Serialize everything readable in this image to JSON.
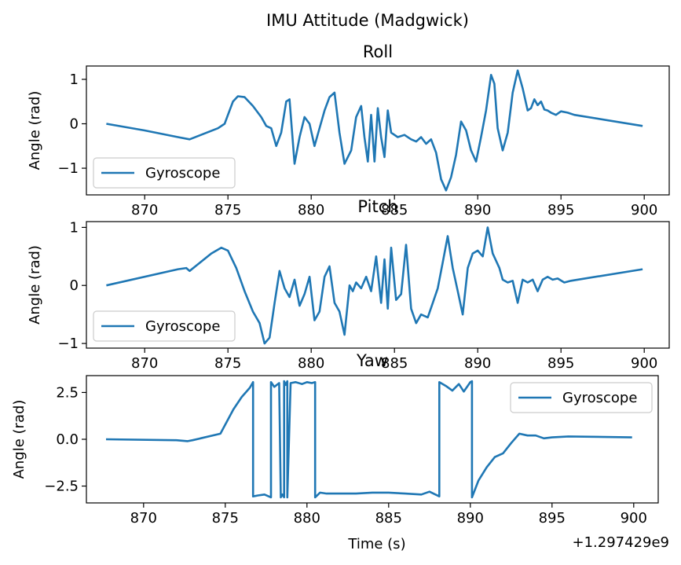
{
  "suptitle": "IMU Attitude (Madgwick)",
  "xlabel": "Time (s)",
  "x_offset_label": "+1.297429e9",
  "chart_data": [
    {
      "type": "line",
      "title": "Roll",
      "ylabel": "Angle (rad)",
      "xlim": [
        866.5,
        901.5
      ],
      "ylim": [
        -1.6,
        1.3
      ],
      "xticks": [
        870,
        875,
        880,
        885,
        890,
        895,
        900
      ],
      "yticks": [
        -1,
        0,
        1
      ],
      "ytick_labels": [
        "−1",
        "0",
        "1"
      ],
      "legend": "lower-left",
      "series": [
        {
          "name": "Gyroscope",
          "color": "#1f77b4",
          "x": [
            867.7,
            870.0,
            872.0,
            872.7,
            874.4,
            874.8,
            875.0,
            875.3,
            875.6,
            876.0,
            876.5,
            877.0,
            877.3,
            877.6,
            877.9,
            878.2,
            878.5,
            878.7,
            879.0,
            879.3,
            879.6,
            879.9,
            880.2,
            880.5,
            880.8,
            881.1,
            881.4,
            881.7,
            882.0,
            882.4,
            882.7,
            883.0,
            883.2,
            883.4,
            883.6,
            883.8,
            884.0,
            884.2,
            884.4,
            884.6,
            884.8,
            885.2,
            885.6,
            886.0,
            886.3,
            886.6,
            886.9,
            887.2,
            887.5,
            887.8,
            888.1,
            888.4,
            888.7,
            889.0,
            889.3,
            889.6,
            889.9,
            890.2,
            890.5,
            890.8,
            891.0,
            891.2,
            891.5,
            891.8,
            892.1,
            892.4,
            892.7,
            893.0,
            893.2,
            893.4,
            893.6,
            893.8,
            894.0,
            894.2,
            894.4,
            894.7,
            895.0,
            895.4,
            895.8,
            899.9
          ],
          "y": [
            0.0,
            -0.15,
            -0.3,
            -0.35,
            -0.1,
            0.0,
            0.2,
            0.5,
            0.62,
            0.6,
            0.4,
            0.15,
            -0.05,
            -0.1,
            -0.5,
            -0.2,
            0.5,
            0.55,
            -0.9,
            -0.3,
            0.15,
            0.0,
            -0.5,
            -0.1,
            0.3,
            0.6,
            0.7,
            -0.2,
            -0.9,
            -0.6,
            0.15,
            0.4,
            -0.3,
            -0.85,
            0.2,
            -0.85,
            0.35,
            -0.3,
            -0.75,
            0.3,
            -0.2,
            -0.3,
            -0.25,
            -0.35,
            -0.4,
            -0.3,
            -0.45,
            -0.35,
            -0.65,
            -1.25,
            -1.5,
            -1.2,
            -0.7,
            0.05,
            -0.15,
            -0.6,
            -0.85,
            -0.3,
            0.3,
            1.1,
            0.9,
            -0.1,
            -0.6,
            -0.2,
            0.7,
            1.2,
            0.8,
            0.3,
            0.35,
            0.55,
            0.42,
            0.5,
            0.32,
            0.3,
            0.25,
            0.2,
            0.28,
            0.25,
            0.2,
            -0.05
          ]
        }
      ]
    },
    {
      "type": "line",
      "title": "Pitch",
      "ylabel": "Angle (rad)",
      "xlim": [
        866.5,
        901.5
      ],
      "ylim": [
        -1.08,
        1.1
      ],
      "xticks": [
        870,
        875,
        880,
        885,
        890,
        895,
        900
      ],
      "yticks": [
        -1,
        0,
        1
      ],
      "ytick_labels": [
        "−1",
        "0",
        "1"
      ],
      "legend": "lower-left",
      "series": [
        {
          "name": "Gyroscope",
          "color": "#1f77b4",
          "x": [
            867.7,
            872.0,
            872.5,
            872.7,
            874.0,
            874.6,
            875.0,
            875.5,
            876.0,
            876.5,
            876.9,
            877.2,
            877.5,
            877.8,
            878.1,
            878.4,
            878.7,
            879.0,
            879.3,
            879.6,
            879.9,
            880.2,
            880.5,
            880.8,
            881.1,
            881.4,
            881.7,
            882.0,
            882.3,
            882.5,
            882.7,
            883.0,
            883.3,
            883.6,
            883.9,
            884.2,
            884.4,
            884.6,
            884.8,
            885.1,
            885.4,
            885.7,
            886.0,
            886.3,
            886.6,
            887.0,
            887.3,
            887.6,
            887.9,
            888.2,
            888.5,
            888.8,
            889.1,
            889.4,
            889.7,
            890.0,
            890.3,
            890.6,
            890.9,
            891.3,
            891.5,
            891.8,
            892.1,
            892.4,
            892.7,
            893.0,
            893.3,
            893.6,
            893.9,
            894.2,
            894.5,
            894.8,
            895.2,
            895.6,
            899.9
          ],
          "y": [
            0.0,
            0.28,
            0.3,
            0.25,
            0.55,
            0.65,
            0.6,
            0.3,
            -0.1,
            -0.45,
            -0.65,
            -1.0,
            -0.9,
            -0.3,
            0.25,
            -0.05,
            -0.2,
            0.1,
            -0.35,
            -0.15,
            0.15,
            -0.6,
            -0.45,
            0.15,
            0.33,
            -0.3,
            -0.45,
            -0.85,
            0.0,
            -0.1,
            0.05,
            -0.05,
            0.15,
            -0.1,
            0.5,
            -0.3,
            0.45,
            -0.4,
            0.65,
            -0.25,
            -0.15,
            0.7,
            -0.4,
            -0.65,
            -0.5,
            -0.55,
            -0.3,
            -0.05,
            0.4,
            0.85,
            0.3,
            -0.1,
            -0.5,
            0.3,
            0.55,
            0.6,
            0.5,
            1.0,
            0.55,
            0.3,
            0.1,
            0.05,
            0.08,
            -0.3,
            0.1,
            0.05,
            0.1,
            -0.1,
            0.1,
            0.15,
            0.1,
            0.12,
            0.05,
            0.08,
            0.28
          ]
        }
      ]
    },
    {
      "type": "line",
      "title": "Yaw",
      "ylabel": "Angle (rad)",
      "xlim": [
        866.5,
        901.5
      ],
      "ylim": [
        -3.4,
        3.4
      ],
      "xticks": [
        870,
        875,
        880,
        885,
        890,
        895,
        900
      ],
      "yticks": [
        -2.5,
        0.0,
        2.5
      ],
      "ytick_labels": [
        "−2.5",
        "0.0",
        "2.5"
      ],
      "legend": "upper-right",
      "series": [
        {
          "name": "Gyroscope",
          "color": "#1f77b4",
          "x": [
            867.7,
            871.9,
            872.0,
            872.7,
            873.0,
            874.7,
            875.5,
            876.0,
            876.5,
            876.7,
            876.7,
            877.0,
            877.4,
            877.8,
            877.8,
            878.0,
            878.3,
            878.4,
            878.5,
            878.6,
            878.6,
            878.7,
            878.8,
            878.8,
            879.0,
            879.3,
            879.7,
            880.0,
            880.3,
            880.5,
            880.5,
            880.8,
            881.2,
            882.0,
            883.0,
            884.0,
            885.0,
            886.0,
            887.0,
            887.5,
            888.1,
            888.1,
            888.5,
            888.9,
            889.3,
            889.6,
            890.0,
            890.1,
            890.1,
            890.5,
            891.0,
            891.5,
            892.0,
            892.5,
            893.0,
            893.5,
            894.0,
            894.5,
            895.0,
            896.0,
            899.9
          ],
          "y": [
            0.0,
            -0.05,
            -0.05,
            -0.1,
            -0.05,
            0.3,
            1.6,
            2.25,
            2.75,
            3.05,
            -3.05,
            -3.0,
            -2.95,
            -3.1,
            3.05,
            2.8,
            3.0,
            -3.1,
            -2.95,
            -3.1,
            3.1,
            2.9,
            3.1,
            -3.1,
            3.0,
            3.05,
            2.95,
            3.05,
            3.0,
            3.05,
            -3.1,
            -2.85,
            -2.9,
            -2.9,
            -2.9,
            -2.85,
            -2.85,
            -2.9,
            -2.95,
            -2.8,
            -3.05,
            3.05,
            2.85,
            2.6,
            2.95,
            2.55,
            3.05,
            3.1,
            -3.1,
            -2.2,
            -1.5,
            -0.95,
            -0.75,
            -0.2,
            0.3,
            0.2,
            0.2,
            0.05,
            0.1,
            0.15,
            0.1
          ]
        }
      ]
    }
  ]
}
